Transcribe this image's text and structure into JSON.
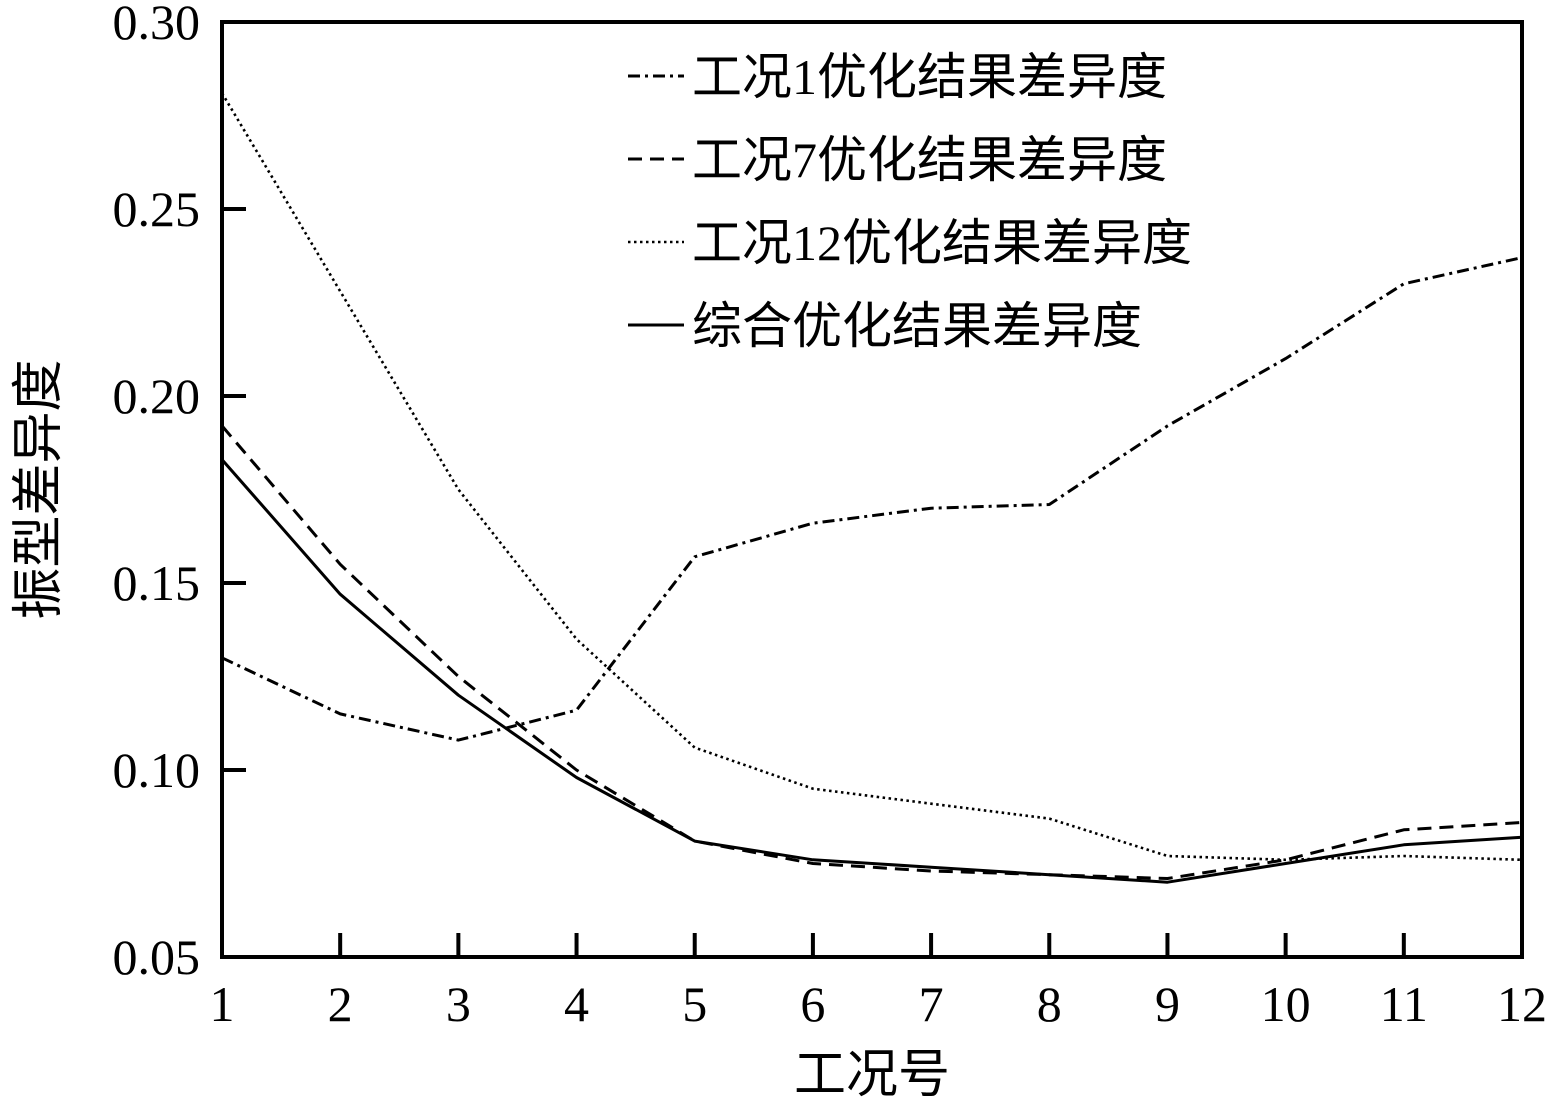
{
  "chart_data": {
    "type": "line",
    "xlabel": "工况号",
    "ylabel": "振型差异度",
    "x": [
      1,
      2,
      3,
      4,
      5,
      6,
      7,
      8,
      9,
      10,
      11,
      12
    ],
    "x_tick_labels": [
      "1",
      "2",
      "3",
      "4",
      "5",
      "6",
      "7",
      "8",
      "9",
      "10",
      "11",
      "12"
    ],
    "y_tick_labels": [
      "0.05",
      "0.10",
      "0.15",
      "0.20",
      "0.25",
      "0.30"
    ],
    "xlim": [
      1,
      12
    ],
    "ylim": [
      0.05,
      0.3
    ],
    "grid": false,
    "legend_position": "top-right",
    "series": [
      {
        "name": "工况1优化结果差异度",
        "style": "dash-dot",
        "color": "#000000",
        "values": [
          0.13,
          0.115,
          0.108,
          0.116,
          0.157,
          0.166,
          0.17,
          0.171,
          0.192,
          0.21,
          0.23,
          0.237
        ]
      },
      {
        "name": "工况7优化结果差异度",
        "style": "dashed",
        "color": "#000000",
        "values": [
          0.192,
          0.155,
          0.125,
          0.1,
          0.081,
          0.075,
          0.073,
          0.072,
          0.071,
          0.076,
          0.084,
          0.086
        ]
      },
      {
        "name": "工况12优化结果差异度",
        "style": "dotted",
        "color": "#000000",
        "values": [
          0.281,
          0.228,
          0.175,
          0.135,
          0.106,
          0.095,
          0.091,
          0.087,
          0.077,
          0.076,
          0.077,
          0.076
        ]
      },
      {
        "name": "综合优化结果差异度",
        "style": "solid",
        "color": "#000000",
        "values": [
          0.183,
          0.147,
          0.12,
          0.098,
          0.081,
          0.076,
          0.074,
          0.072,
          0.07,
          0.075,
          0.08,
          0.082
        ]
      }
    ]
  }
}
